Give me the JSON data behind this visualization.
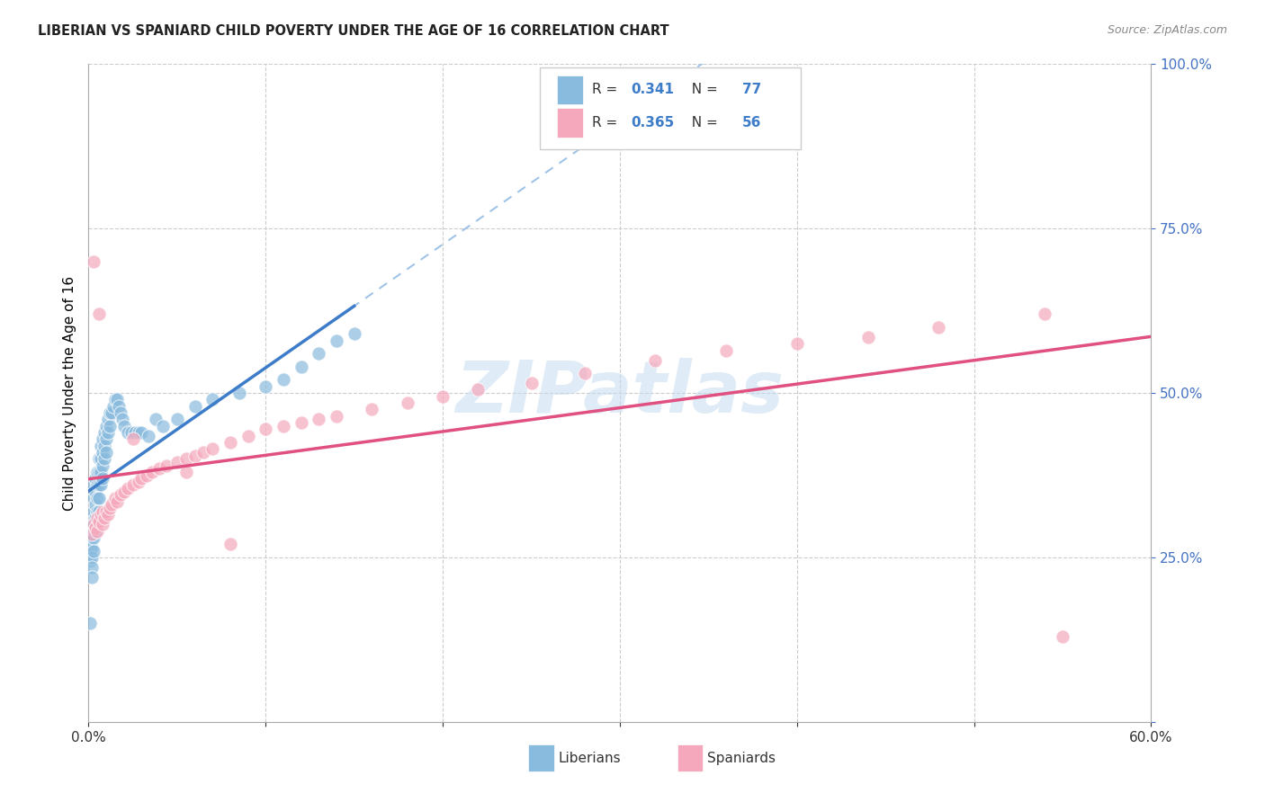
{
  "title": "LIBERIAN VS SPANIARD CHILD POVERTY UNDER THE AGE OF 16 CORRELATION CHART",
  "source": "Source: ZipAtlas.com",
  "ylabel": "Child Poverty Under the Age of 16",
  "xlim": [
    0.0,
    0.6
  ],
  "ylim": [
    0.0,
    1.0
  ],
  "liberian_color": "#89BBDE",
  "spaniard_color": "#F5A8BC",
  "liberian_line_color": "#3D7CC9",
  "spaniard_line_color": "#E05080",
  "liberian_dashed_color": "#A0C4E8",
  "background_color": "#FFFFFF",
  "watermark_color": "#C5DCF0",
  "liberian_R": 0.341,
  "liberian_N": 77,
  "spaniard_R": 0.365,
  "spaniard_N": 56,
  "liberian_x": [
    0.001,
    0.001,
    0.001,
    0.001,
    0.001,
    0.002,
    0.002,
    0.002,
    0.002,
    0.002,
    0.002,
    0.002,
    0.003,
    0.003,
    0.003,
    0.003,
    0.003,
    0.003,
    0.004,
    0.004,
    0.004,
    0.004,
    0.004,
    0.005,
    0.005,
    0.005,
    0.005,
    0.006,
    0.006,
    0.006,
    0.006,
    0.006,
    0.007,
    0.007,
    0.007,
    0.007,
    0.008,
    0.008,
    0.008,
    0.008,
    0.009,
    0.009,
    0.009,
    0.01,
    0.01,
    0.01,
    0.011,
    0.011,
    0.012,
    0.012,
    0.013,
    0.014,
    0.015,
    0.016,
    0.017,
    0.018,
    0.019,
    0.02,
    0.022,
    0.024,
    0.026,
    0.028,
    0.03,
    0.034,
    0.038,
    0.042,
    0.05,
    0.06,
    0.07,
    0.085,
    0.1,
    0.11,
    0.12,
    0.13,
    0.14,
    0.15,
    0.001
  ],
  "liberian_y": [
    0.285,
    0.275,
    0.265,
    0.255,
    0.245,
    0.31,
    0.295,
    0.28,
    0.265,
    0.25,
    0.235,
    0.22,
    0.36,
    0.34,
    0.32,
    0.3,
    0.28,
    0.26,
    0.37,
    0.35,
    0.33,
    0.31,
    0.29,
    0.38,
    0.36,
    0.34,
    0.32,
    0.4,
    0.38,
    0.36,
    0.34,
    0.32,
    0.42,
    0.4,
    0.38,
    0.36,
    0.43,
    0.41,
    0.39,
    0.37,
    0.44,
    0.42,
    0.4,
    0.45,
    0.43,
    0.41,
    0.46,
    0.44,
    0.47,
    0.45,
    0.47,
    0.48,
    0.49,
    0.49,
    0.48,
    0.47,
    0.46,
    0.45,
    0.44,
    0.44,
    0.44,
    0.44,
    0.44,
    0.435,
    0.46,
    0.45,
    0.46,
    0.48,
    0.49,
    0.5,
    0.51,
    0.52,
    0.54,
    0.56,
    0.58,
    0.59,
    0.15
  ],
  "spaniard_x": [
    0.002,
    0.003,
    0.004,
    0.005,
    0.005,
    0.006,
    0.007,
    0.008,
    0.008,
    0.009,
    0.01,
    0.011,
    0.012,
    0.013,
    0.015,
    0.016,
    0.018,
    0.02,
    0.022,
    0.025,
    0.028,
    0.03,
    0.033,
    0.036,
    0.04,
    0.044,
    0.05,
    0.055,
    0.06,
    0.065,
    0.07,
    0.08,
    0.09,
    0.1,
    0.11,
    0.12,
    0.13,
    0.14,
    0.16,
    0.18,
    0.2,
    0.22,
    0.25,
    0.28,
    0.32,
    0.36,
    0.4,
    0.44,
    0.48,
    0.54,
    0.003,
    0.006,
    0.025,
    0.055,
    0.08,
    0.55
  ],
  "spaniard_y": [
    0.285,
    0.3,
    0.295,
    0.31,
    0.29,
    0.305,
    0.315,
    0.3,
    0.32,
    0.31,
    0.32,
    0.315,
    0.325,
    0.33,
    0.34,
    0.335,
    0.345,
    0.35,
    0.355,
    0.36,
    0.365,
    0.37,
    0.375,
    0.38,
    0.385,
    0.39,
    0.395,
    0.4,
    0.405,
    0.41,
    0.415,
    0.425,
    0.435,
    0.445,
    0.45,
    0.455,
    0.46,
    0.465,
    0.475,
    0.485,
    0.495,
    0.505,
    0.515,
    0.53,
    0.55,
    0.565,
    0.575,
    0.585,
    0.6,
    0.62,
    0.7,
    0.62,
    0.43,
    0.38,
    0.27,
    0.13
  ],
  "legend_liberian_label_r": "R = ",
  "legend_liberian_r_val": "0.341",
  "legend_liberian_n": "  N = ",
  "legend_liberian_n_val": "77",
  "legend_spaniard_label_r": "R = ",
  "legend_spaniard_r_val": "0.365",
  "legend_spaniard_n": "  N = ",
  "legend_spaniard_n_val": "56"
}
